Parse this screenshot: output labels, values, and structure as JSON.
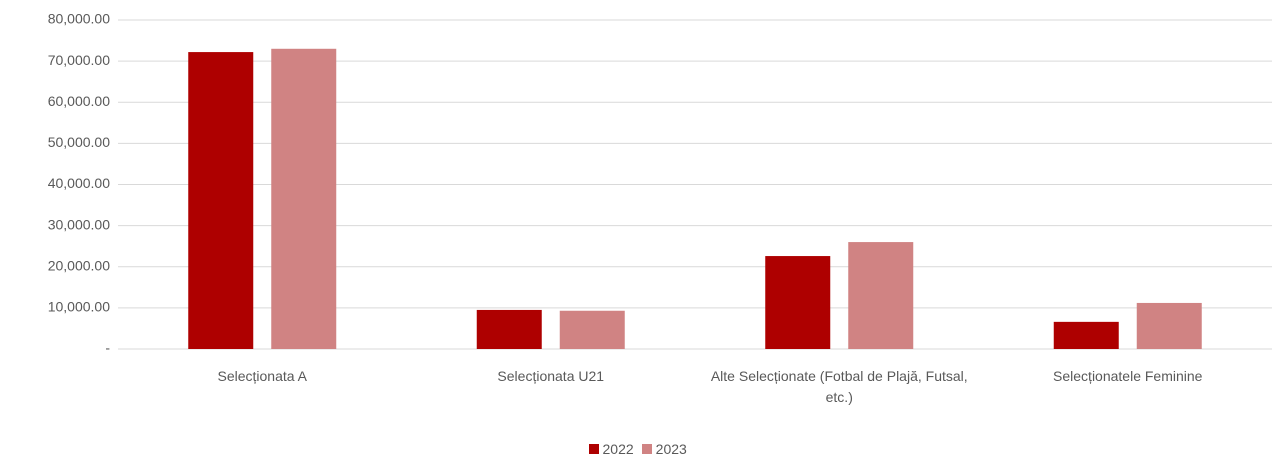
{
  "chart_data": {
    "type": "bar",
    "categories": [
      "Selecționata A",
      "Selecționata U21",
      "Alte Selecționate (Fotbal de Plajă, Futsal, etc.)",
      "Selecționatele Feminine"
    ],
    "series": [
      {
        "name": "2022",
        "color": "#ae0000",
        "values": [
          72200,
          9500,
          22600,
          6600
        ]
      },
      {
        "name": "2023",
        "color": "#d08383",
        "values": [
          73000,
          9300,
          26000,
          11200
        ]
      }
    ],
    "ylim": [
      0,
      80000
    ],
    "yticks": [
      {
        "value": 0,
        "label": "-"
      },
      {
        "value": 10000,
        "label": "10,000.00"
      },
      {
        "value": 20000,
        "label": "20,000.00"
      },
      {
        "value": 30000,
        "label": "30,000.00"
      },
      {
        "value": 40000,
        "label": "40,000.00"
      },
      {
        "value": 50000,
        "label": "50,000.00"
      },
      {
        "value": 60000,
        "label": "60,000.00"
      },
      {
        "value": 70000,
        "label": "70,000.00"
      },
      {
        "value": 80000,
        "label": "80,000.00"
      }
    ],
    "grid": true,
    "legend": "bottom"
  }
}
